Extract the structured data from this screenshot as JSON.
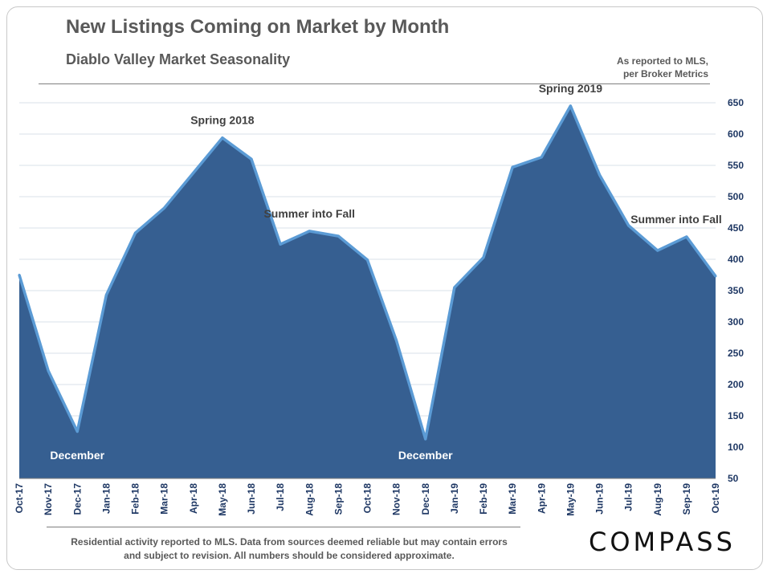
{
  "header": {
    "title": "New Listings Coming on Market by Month",
    "subtitle": "Diablo Valley Market Seasonality",
    "source_note_line1": "As reported to MLS,",
    "source_note_line2": "per Broker Metrics"
  },
  "footer": {
    "note_line1": "Residential activity reported to MLS. Data from sources deemed reliable but may contain errors",
    "note_line2": "and subject to revision. All numbers should be considered approximate.",
    "logo": "COMPASS"
  },
  "colors": {
    "area_fill": "#365f91",
    "area_stroke": "#5b9bd5",
    "tick_text": "#1f3864",
    "grid": "#d9e1ea"
  },
  "chart_data": {
    "type": "area",
    "title": "New Listings Coming on Market by Month",
    "categories": [
      "Oct-17",
      "Nov-17",
      "Dec-17",
      "Jan-18",
      "Feb-18",
      "Mar-18",
      "Apr-18",
      "May-18",
      "Jun-18",
      "Jul-18",
      "Aug-18",
      "Sep-18",
      "Oct-18",
      "Nov-18",
      "Dec-18",
      "Jan-19",
      "Feb-19",
      "Mar-19",
      "Apr-19",
      "May-19",
      "Jun-19",
      "Jul-19",
      "Aug-19",
      "Sep-19",
      "Oct-19"
    ],
    "values": [
      375,
      222,
      125,
      343,
      442,
      482,
      538,
      594,
      560,
      424,
      445,
      437,
      399,
      270,
      113,
      355,
      403,
      547,
      563,
      645,
      535,
      454,
      414,
      436,
      373
    ],
    "ylim": [
      50,
      650
    ],
    "yticks": [
      50,
      100,
      150,
      200,
      250,
      300,
      350,
      400,
      450,
      500,
      550,
      600,
      650
    ],
    "y_axis_side": "right",
    "grid": true,
    "annotations": [
      {
        "text": "December",
        "category": "Dec-17"
      },
      {
        "text": "Spring 2018",
        "category": "May-18"
      },
      {
        "text": "Summer into Fall",
        "category": "Aug-18"
      },
      {
        "text": "December",
        "category": "Dec-18"
      },
      {
        "text": "Spring 2019",
        "category": "May-19"
      },
      {
        "text": "Summer into Fall",
        "category": "Sep-19"
      }
    ]
  }
}
